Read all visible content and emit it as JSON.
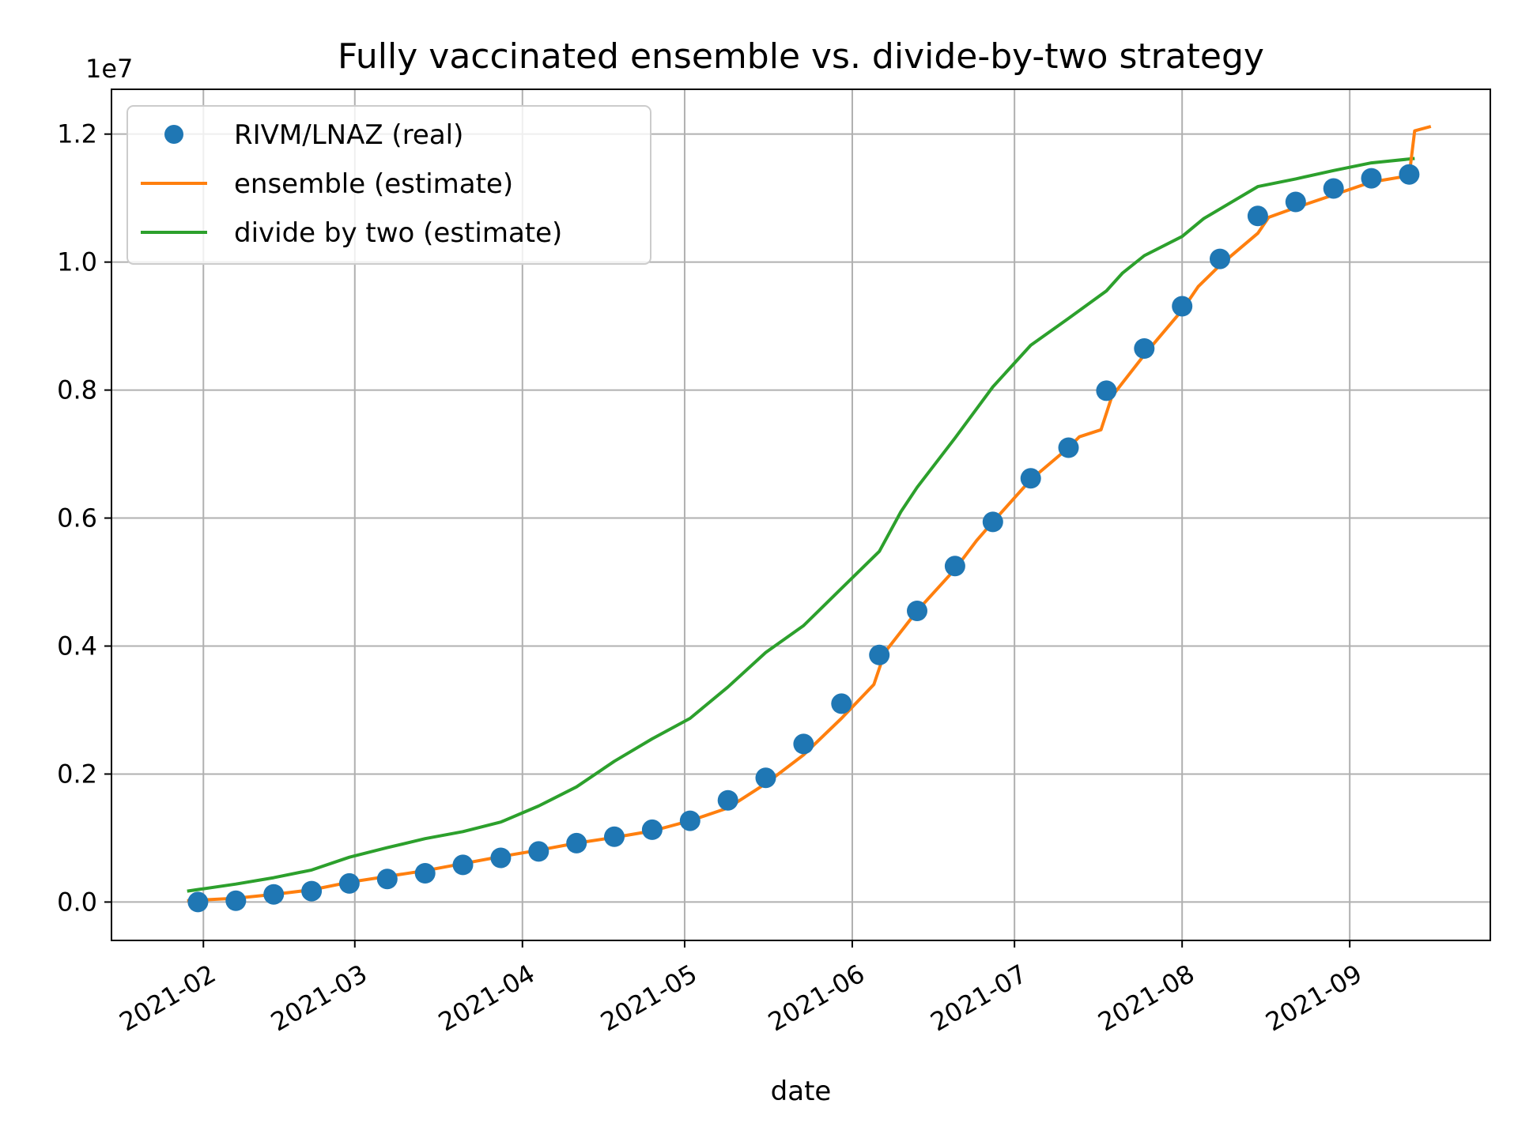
{
  "chart_data": {
    "type": "line",
    "title": "Fully vaccinated ensemble vs. divide-by-two strategy",
    "xlabel": "date",
    "ylabel": "",
    "y_offset_label": "1e7",
    "y_scale": 10000000,
    "ylim": [
      -0.06,
      1.27
    ],
    "xlim": [
      "2021-01-15",
      "2021-09-27"
    ],
    "grid": true,
    "legend_position": "top-left",
    "x_ticks": [
      "2021-02",
      "2021-03",
      "2021-04",
      "2021-05",
      "2021-06",
      "2021-07",
      "2021-08",
      "2021-09"
    ],
    "y_ticks": [
      "0.0",
      "0.2",
      "0.4",
      "0.6",
      "0.8",
      "1.0",
      "1.2"
    ],
    "series": [
      {
        "name": "RIVM/LNAZ (real)",
        "kind": "scatter",
        "color": "#1f77b4",
        "points": [
          [
            "2021-01-31",
            0.0
          ],
          [
            "2021-02-07",
            0.002
          ],
          [
            "2021-02-14",
            0.012
          ],
          [
            "2021-02-21",
            0.017
          ],
          [
            "2021-02-28",
            0.029
          ],
          [
            "2021-03-07",
            0.036
          ],
          [
            "2021-03-14",
            0.045
          ],
          [
            "2021-03-21",
            0.058
          ],
          [
            "2021-03-28",
            0.069
          ],
          [
            "2021-04-04",
            0.079
          ],
          [
            "2021-04-11",
            0.092
          ],
          [
            "2021-04-18",
            0.102
          ],
          [
            "2021-04-25",
            0.113
          ],
          [
            "2021-05-02",
            0.127
          ],
          [
            "2021-05-09",
            0.159
          ],
          [
            "2021-05-16",
            0.194
          ],
          [
            "2021-05-23",
            0.247
          ],
          [
            "2021-05-30",
            0.31
          ],
          [
            "2021-06-06",
            0.386
          ],
          [
            "2021-06-13",
            0.455
          ],
          [
            "2021-06-20",
            0.525
          ],
          [
            "2021-06-27",
            0.594
          ],
          [
            "2021-07-04",
            0.662
          ],
          [
            "2021-07-11",
            0.71
          ],
          [
            "2021-07-18",
            0.799
          ],
          [
            "2021-07-25",
            0.865
          ],
          [
            "2021-08-01",
            0.931
          ],
          [
            "2021-08-08",
            1.005
          ],
          [
            "2021-08-15",
            1.072
          ],
          [
            "2021-08-22",
            1.094
          ],
          [
            "2021-08-29",
            1.115
          ],
          [
            "2021-09-05",
            1.131
          ],
          [
            "2021-09-12",
            1.137
          ]
        ]
      },
      {
        "name": "ensemble (estimate)",
        "kind": "line",
        "color": "#ff7f0e",
        "points": [
          [
            "2021-01-29",
            0.002
          ],
          [
            "2021-02-07",
            0.006
          ],
          [
            "2021-02-14",
            0.012
          ],
          [
            "2021-02-21",
            0.019
          ],
          [
            "2021-02-28",
            0.031
          ],
          [
            "2021-03-07",
            0.04
          ],
          [
            "2021-03-14",
            0.049
          ],
          [
            "2021-03-21",
            0.06
          ],
          [
            "2021-03-28",
            0.071
          ],
          [
            "2021-04-04",
            0.081
          ],
          [
            "2021-04-11",
            0.092
          ],
          [
            "2021-04-18",
            0.101
          ],
          [
            "2021-04-25",
            0.111
          ],
          [
            "2021-05-02",
            0.127
          ],
          [
            "2021-05-09",
            0.147
          ],
          [
            "2021-05-16",
            0.185
          ],
          [
            "2021-05-23",
            0.23
          ],
          [
            "2021-05-30",
            0.287
          ],
          [
            "2021-06-05",
            0.34
          ],
          [
            "2021-06-07",
            0.39
          ],
          [
            "2021-06-13",
            0.455
          ],
          [
            "2021-06-20",
            0.52
          ],
          [
            "2021-06-24",
            0.565
          ],
          [
            "2021-06-27",
            0.594
          ],
          [
            "2021-07-04",
            0.66
          ],
          [
            "2021-07-11",
            0.71
          ],
          [
            "2021-07-13",
            0.727
          ],
          [
            "2021-07-17",
            0.738
          ],
          [
            "2021-07-19",
            0.79
          ],
          [
            "2021-07-25",
            0.855
          ],
          [
            "2021-08-01",
            0.925
          ],
          [
            "2021-08-04",
            0.962
          ],
          [
            "2021-08-08",
            0.995
          ],
          [
            "2021-08-15",
            1.045
          ],
          [
            "2021-08-17",
            1.07
          ],
          [
            "2021-08-22",
            1.085
          ],
          [
            "2021-08-29",
            1.105
          ],
          [
            "2021-09-05",
            1.125
          ],
          [
            "2021-09-12",
            1.135
          ],
          [
            "2021-09-13",
            1.205
          ],
          [
            "2021-09-16",
            1.212
          ]
        ]
      },
      {
        "name": "divide by two (estimate)",
        "kind": "line",
        "color": "#2ca02c",
        "points": [
          [
            "2021-01-29",
            0.017
          ],
          [
            "2021-02-07",
            0.028
          ],
          [
            "2021-02-14",
            0.038
          ],
          [
            "2021-02-21",
            0.05
          ],
          [
            "2021-02-28",
            0.07
          ],
          [
            "2021-03-07",
            0.085
          ],
          [
            "2021-03-14",
            0.099
          ],
          [
            "2021-03-21",
            0.11
          ],
          [
            "2021-03-28",
            0.125
          ],
          [
            "2021-04-04",
            0.15
          ],
          [
            "2021-04-11",
            0.18
          ],
          [
            "2021-04-18",
            0.22
          ],
          [
            "2021-04-25",
            0.255
          ],
          [
            "2021-05-02",
            0.287
          ],
          [
            "2021-05-09",
            0.336
          ],
          [
            "2021-05-16",
            0.39
          ],
          [
            "2021-05-23",
            0.432
          ],
          [
            "2021-05-30",
            0.49
          ],
          [
            "2021-06-06",
            0.548
          ],
          [
            "2021-06-10",
            0.61
          ],
          [
            "2021-06-13",
            0.648
          ],
          [
            "2021-06-20",
            0.725
          ],
          [
            "2021-06-27",
            0.805
          ],
          [
            "2021-07-04",
            0.87
          ],
          [
            "2021-07-11",
            0.912
          ],
          [
            "2021-07-18",
            0.955
          ],
          [
            "2021-07-21",
            0.983
          ],
          [
            "2021-07-25",
            1.01
          ],
          [
            "2021-08-01",
            1.04
          ],
          [
            "2021-08-05",
            1.068
          ],
          [
            "2021-08-15",
            1.118
          ],
          [
            "2021-08-22",
            1.13
          ],
          [
            "2021-08-29",
            1.143
          ],
          [
            "2021-09-05",
            1.155
          ],
          [
            "2021-09-13",
            1.162
          ]
        ]
      }
    ]
  }
}
